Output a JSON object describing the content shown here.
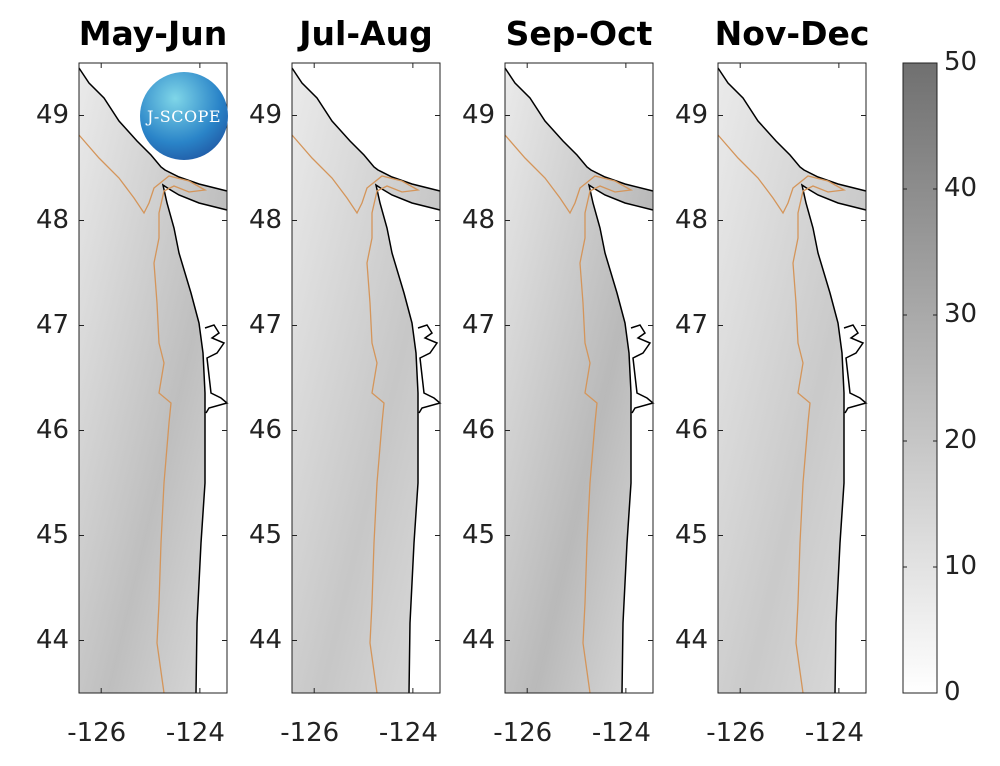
{
  "panels": [
    {
      "title": "May-Jun",
      "shade": "#a9a9a9"
    },
    {
      "title": "Jul-Aug",
      "shade": "#b4b4b4"
    },
    {
      "title": "Sep-Oct",
      "shade": "#a2a2a2"
    },
    {
      "title": "Nov-Dec",
      "shade": "#b8b8b8"
    }
  ],
  "lat_ticks": [
    "49",
    "48",
    "47",
    "46",
    "45",
    "44"
  ],
  "lon_ticks": [
    "-126",
    "-124"
  ],
  "colorbar": {
    "ticks": [
      "50",
      "40",
      "30",
      "20",
      "10",
      "0"
    ],
    "range": [
      0,
      50
    ],
    "colors": [
      "#ffffff",
      "#707070"
    ]
  },
  "extent": {
    "lon": [
      -126.45,
      -123.45
    ],
    "lat": [
      43.5,
      49.5
    ]
  },
  "logo": {
    "text": "J-SCOPE"
  },
  "colors": {
    "coast": "#000000",
    "isobath": "#d4955a"
  }
}
